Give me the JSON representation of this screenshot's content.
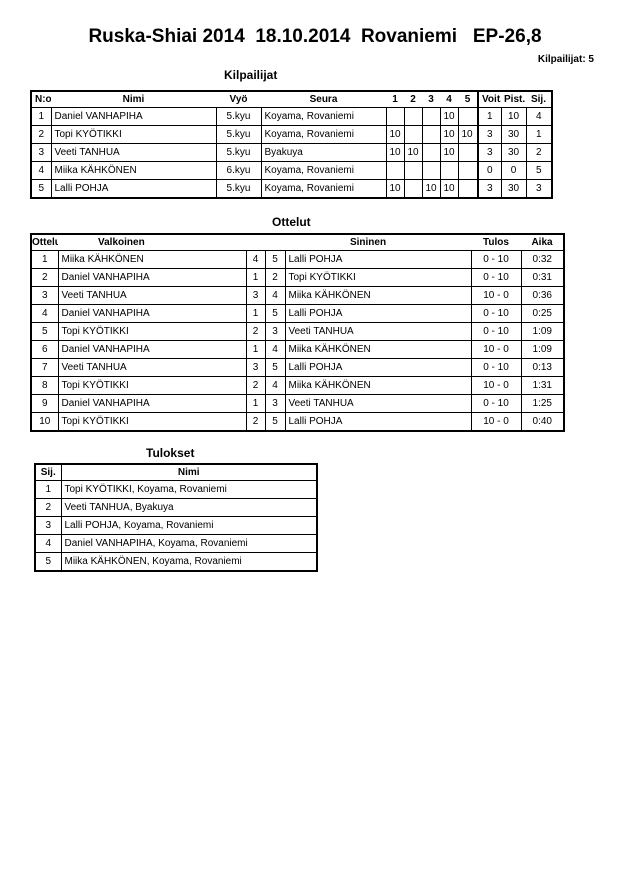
{
  "title": "Ruska-Shiai 2014  18.10.2014  Rovaniemi   EP-26,8",
  "participant_count": "Kilpailijat: 5",
  "competitors": {
    "heading": "Kilpailijat",
    "headers": [
      "N:o",
      "Nimi",
      "Vyö",
      "Seura",
      "1",
      "2",
      "3",
      "4",
      "5",
      "Voit.",
      "Pist.",
      "Sij."
    ],
    "rows": [
      [
        "1",
        "Daniel  VANHAPIHA",
        "5.kyu",
        "Koyama, Rovaniemi",
        "",
        "",
        "",
        "10",
        "",
        "1",
        "10",
        "4"
      ],
      [
        "2",
        "Topi  KYÖTIKKI",
        "5.kyu",
        "Koyama, Rovaniemi",
        "10",
        "",
        "",
        "10",
        "10",
        "3",
        "30",
        "1"
      ],
      [
        "3",
        "Veeti TANHUA",
        "5.kyu",
        "Byakuya",
        "10",
        "10",
        "",
        "10",
        "",
        "3",
        "30",
        "2"
      ],
      [
        "4",
        "Miika  KÄHKÖNEN",
        "6.kyu",
        "Koyama, Rovaniemi",
        "",
        "",
        "",
        "",
        "",
        "0",
        "0",
        "5"
      ],
      [
        "5",
        "Lalli POHJA",
        "5.kyu",
        "Koyama, Rovaniemi",
        "10",
        "",
        "10",
        "10",
        "",
        "3",
        "30",
        "3"
      ]
    ]
  },
  "matches": {
    "heading": "Ottelut",
    "headers": [
      "Ottelu",
      "Valkoinen",
      "Sininen",
      "Tulos",
      "Aika"
    ],
    "rows": [
      [
        "1",
        "Miika  KÄHKÖNEN",
        "4",
        "5",
        "Lalli POHJA",
        "0 - 10",
        "0:32"
      ],
      [
        "2",
        "Daniel  VANHAPIHA",
        "1",
        "2",
        "Topi  KYÖTIKKI",
        "0 - 10",
        "0:31"
      ],
      [
        "3",
        "Veeti TANHUA",
        "3",
        "4",
        "Miika  KÄHKÖNEN",
        "10 - 0",
        "0:36"
      ],
      [
        "4",
        "Daniel  VANHAPIHA",
        "1",
        "5",
        "Lalli POHJA",
        "0 - 10",
        "0:25"
      ],
      [
        "5",
        "Topi  KYÖTIKKI",
        "2",
        "3",
        "Veeti TANHUA",
        "0 - 10",
        "1:09"
      ],
      [
        "6",
        "Daniel  VANHAPIHA",
        "1",
        "4",
        "Miika  KÄHKÖNEN",
        "10 - 0",
        "1:09"
      ],
      [
        "7",
        "Veeti TANHUA",
        "3",
        "5",
        "Lalli POHJA",
        "0 - 10",
        "0:13"
      ],
      [
        "8",
        "Topi  KYÖTIKKI",
        "2",
        "4",
        "Miika  KÄHKÖNEN",
        "10 - 0",
        "1:31"
      ],
      [
        "9",
        "Daniel  VANHAPIHA",
        "1",
        "3",
        "Veeti TANHUA",
        "0 - 10",
        "1:25"
      ],
      [
        "10",
        "Topi  KYÖTIKKI",
        "2",
        "5",
        "Lalli POHJA",
        "10 - 0",
        "0:40"
      ]
    ]
  },
  "results": {
    "heading": "Tulokset",
    "headers": [
      "Sij.",
      "Nimi"
    ],
    "rows": [
      [
        "1",
        "Topi  KYÖTIKKI, Koyama, Rovaniemi"
      ],
      [
        "2",
        "Veeti TANHUA, Byakuya"
      ],
      [
        "3",
        "Lalli POHJA, Koyama, Rovaniemi"
      ],
      [
        "4",
        "Daniel  VANHAPIHA, Koyama, Rovaniemi"
      ],
      [
        "5",
        "Miika  KÄHKÖNEN, Koyama, Rovaniemi"
      ]
    ]
  }
}
